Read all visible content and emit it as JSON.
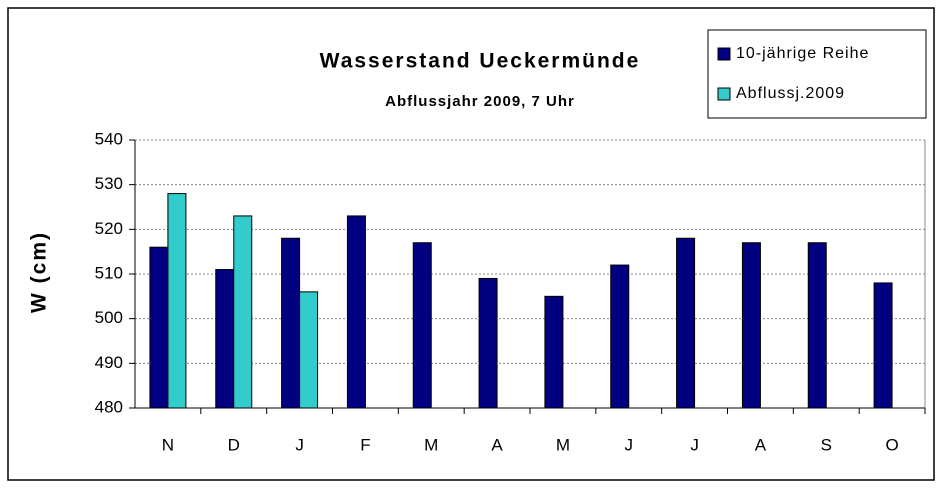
{
  "chart_data": {
    "type": "bar",
    "title": "Wasserstand Ueckermünde",
    "subtitle": "Abflussjahr 2009, 7 Uhr",
    "y_label": "W (cm)",
    "categories": [
      "N",
      "D",
      "J",
      "F",
      "M",
      "A",
      "M",
      "J",
      "J",
      "A",
      "S",
      "O"
    ],
    "series": [
      {
        "name": "10-jährige Reihe",
        "color": "#000080",
        "values": [
          516,
          511,
          518,
          523,
          517,
          509,
          505,
          512,
          518,
          517,
          517,
          508
        ]
      },
      {
        "name": "Abflussj.2009",
        "color": "#33cccc",
        "values": [
          528,
          523,
          506,
          null,
          null,
          null,
          null,
          null,
          null,
          null,
          null,
          null
        ]
      }
    ],
    "ylim": [
      480,
      540
    ],
    "yticks": [
      480,
      490,
      500,
      510,
      520,
      530,
      540
    ],
    "grid": true,
    "legend": "top-right"
  }
}
